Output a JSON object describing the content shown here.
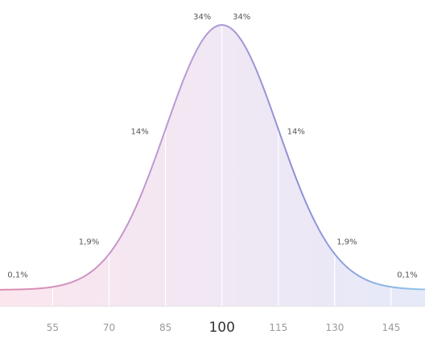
{
  "chart_data": {
    "type": "area",
    "title": "",
    "xlabel": "",
    "ylabel": "",
    "distribution": {
      "mean": 100,
      "sd": 15
    },
    "xlim": [
      41,
      154
    ],
    "x_ticks": [
      "55",
      "70",
      "85",
      "100",
      "115",
      "130",
      "145"
    ],
    "highlight_tick": "100",
    "regions": [
      {
        "label": "0,1%",
        "x_from": 41,
        "x_to": 55
      },
      {
        "label": "1,9%",
        "x_from": 55,
        "x_to": 70
      },
      {
        "label": "14%",
        "x_from": 70,
        "x_to": 85
      },
      {
        "label": "34%",
        "x_from": 85,
        "x_to": 100
      },
      {
        "label": "34%",
        "x_from": 100,
        "x_to": 115
      },
      {
        "label": "14%",
        "x_from": 115,
        "x_to": 130
      },
      {
        "label": "1,9%",
        "x_from": 130,
        "x_to": 145
      },
      {
        "label": "0,1%",
        "x_from": 145,
        "x_to": 154
      }
    ],
    "grid_lines_at": [
      55,
      70,
      85,
      100,
      115,
      130,
      145
    ],
    "colors": {
      "left": "#e08cb0",
      "mid": "#b79bd8",
      "right": "#8e8fd6",
      "far_right": "#8fc4ec",
      "fill_left": "#fbe3ec",
      "fill_right": "#e3e7f8",
      "baseline": "#e6e6e6"
    }
  }
}
